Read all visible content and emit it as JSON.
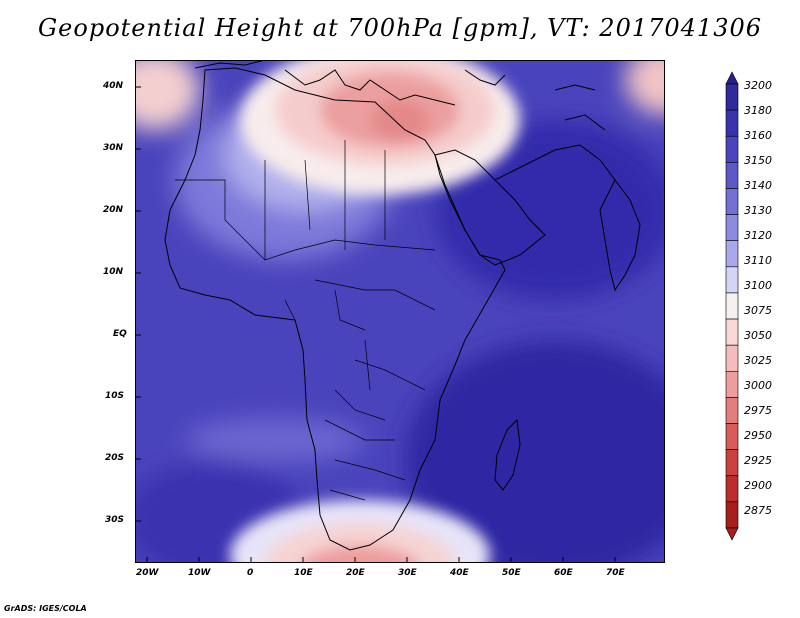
{
  "title": "Geopotential Height at 700hPa [gpm], VT: 2017041306",
  "credit": "GrADS: IGES/COLA",
  "map": {
    "lon_labels": [
      "20W",
      "10W",
      "0",
      "10E",
      "20E",
      "30E",
      "40E",
      "50E",
      "60E",
      "70E"
    ],
    "lat_labels": [
      "40N",
      "30N",
      "20N",
      "10N",
      "EQ",
      "10S",
      "20S",
      "30S"
    ]
  },
  "colorbar": {
    "levels": [
      "3200",
      "3180",
      "3160",
      "3150",
      "3140",
      "3130",
      "3120",
      "3110",
      "3100",
      "3075",
      "3050",
      "3025",
      "3000",
      "2975",
      "2950",
      "2925",
      "2900",
      "2875"
    ],
    "colors": [
      "#2a1e8a",
      "#302a9c",
      "#3a34ac",
      "#4b45bd",
      "#5d58c9",
      "#7471d4",
      "#8d8be0",
      "#a9a8ea",
      "#d4d4f4",
      "#f6f0f0",
      "#f9d8d8",
      "#f4bcbc",
      "#ec9e9e",
      "#e37e7e",
      "#d85c5c",
      "#cc4040",
      "#bd2d2d",
      "#a81e1e"
    ]
  }
}
